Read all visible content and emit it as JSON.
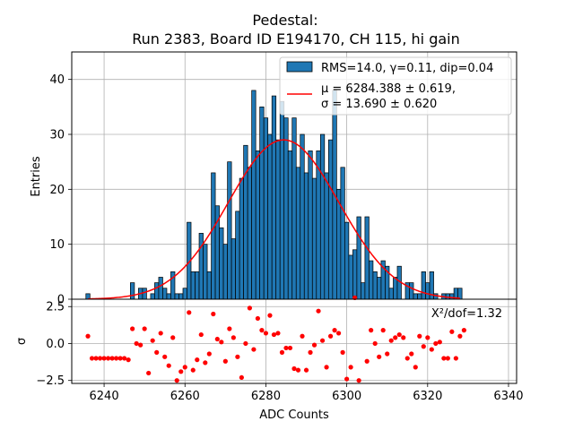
{
  "chart_data": [
    {
      "type": "bar",
      "title_line1": "Pedestal:",
      "title_line2": "Run 2383, Board ID E194170, CH 115, hi gain",
      "ylabel": "Entries",
      "xlim": [
        6232,
        6342
      ],
      "ylim": [
        0,
        45
      ],
      "yticks": [
        0,
        10,
        20,
        30,
        40
      ],
      "grid": true,
      "legend_position": "top-right",
      "legend": {
        "hist_label": "RMS=14.0, γ=0.11, dip=0.04",
        "fit_label_mu": "μ = 6284.388 ± 0.619,",
        "fit_label_sigma": "σ = 13.690 ± 0.620"
      },
      "bin_width": 1,
      "bins_x": [
        6236,
        6247,
        6249,
        6250,
        6252,
        6253,
        6254,
        6255,
        6256,
        6257,
        6258,
        6259,
        6260,
        6261,
        6262,
        6263,
        6264,
        6265,
        6266,
        6267,
        6268,
        6269,
        6270,
        6271,
        6272,
        6273,
        6274,
        6275,
        6276,
        6277,
        6278,
        6279,
        6280,
        6281,
        6282,
        6283,
        6284,
        6285,
        6286,
        6287,
        6288,
        6289,
        6290,
        6291,
        6292,
        6293,
        6294,
        6295,
        6296,
        6297,
        6298,
        6299,
        6300,
        6301,
        6302,
        6303,
        6304,
        6305,
        6306,
        6307,
        6308,
        6309,
        6310,
        6311,
        6312,
        6313,
        6315,
        6316,
        6317,
        6318,
        6319,
        6320,
        6321,
        6322,
        6324,
        6325,
        6326,
        6327,
        6328
      ],
      "counts": [
        1,
        3,
        2,
        2,
        1,
        3,
        4,
        2,
        1,
        5,
        1,
        1,
        2,
        14,
        5,
        5,
        12,
        10,
        5,
        23,
        17,
        13,
        10,
        25,
        11,
        16,
        22,
        28,
        24,
        38,
        27,
        35,
        33,
        30,
        37,
        29,
        36,
        33,
        27,
        33,
        24,
        30,
        23,
        27,
        22,
        27,
        30,
        23,
        29,
        38,
        20,
        24,
        14,
        8,
        9,
        15,
        3,
        15,
        7,
        5,
        4,
        7,
        6,
        2,
        4,
        6,
        3,
        3,
        1,
        1,
        5,
        3,
        5,
        1,
        1,
        1,
        1,
        2,
        2
      ],
      "fit": {
        "type": "gaussian",
        "amplitude": 29,
        "mu": 6284.388,
        "sigma": 13.69,
        "x_range": [
          6236,
          6328
        ]
      }
    },
    {
      "type": "scatter",
      "xlabel": "ADC Counts",
      "ylabel": "σ",
      "xlim": [
        6232,
        6342
      ],
      "ylim": [
        -2.7,
        3.0
      ],
      "xticks": [
        6240,
        6260,
        6280,
        6300,
        6320,
        6340
      ],
      "yticks": [
        -2.5,
        0.0,
        2.5
      ],
      "ytick_labels": [
        "−2.5",
        "0.0",
        "2.5"
      ],
      "grid": true,
      "annotation": "X²/dof=1.32",
      "marker_color": "#ff0000",
      "points": [
        [
          6236,
          0.5
        ],
        [
          6237,
          -1.0
        ],
        [
          6238,
          -1.0
        ],
        [
          6239,
          -1.0
        ],
        [
          6240,
          -1.0
        ],
        [
          6241,
          -1.0
        ],
        [
          6242,
          -1.0
        ],
        [
          6243,
          -1.0
        ],
        [
          6244,
          -1.0
        ],
        [
          6245,
          -1.0
        ],
        [
          6246,
          -1.1
        ],
        [
          6247,
          1.0
        ],
        [
          6248,
          0.0
        ],
        [
          6249,
          -0.1
        ],
        [
          6250,
          1.0
        ],
        [
          6251,
          -2.0
        ],
        [
          6252,
          0.2
        ],
        [
          6253,
          -0.6
        ],
        [
          6254,
          0.7
        ],
        [
          6255,
          -0.9
        ],
        [
          6256,
          -1.5
        ],
        [
          6257,
          0.4
        ],
        [
          6258,
          -2.5
        ],
        [
          6259,
          -1.9
        ],
        [
          6260,
          -1.6
        ],
        [
          6261,
          2.1
        ],
        [
          6262,
          -1.8
        ],
        [
          6263,
          -1.1
        ],
        [
          6264,
          0.6
        ],
        [
          6265,
          -1.3
        ],
        [
          6266,
          -0.7
        ],
        [
          6267,
          2.0
        ],
        [
          6268,
          0.3
        ],
        [
          6269,
          0.1
        ],
        [
          6270,
          -1.2
        ],
        [
          6271,
          1.0
        ],
        [
          6272,
          0.4
        ],
        [
          6273,
          -0.9
        ],
        [
          6274,
          -2.3
        ],
        [
          6275,
          0.0
        ],
        [
          6276,
          2.4
        ],
        [
          6277,
          -0.4
        ],
        [
          6278,
          1.7
        ],
        [
          6279,
          0.9
        ],
        [
          6280,
          0.7
        ],
        [
          6281,
          1.9
        ],
        [
          6282,
          0.6
        ],
        [
          6283,
          0.7
        ],
        [
          6284,
          -0.6
        ],
        [
          6285,
          -0.3
        ],
        [
          6286,
          -0.3
        ],
        [
          6287,
          -1.7
        ],
        [
          6288,
          -1.8
        ],
        [
          6289,
          0.5
        ],
        [
          6290,
          -1.8
        ],
        [
          6291,
          -0.6
        ],
        [
          6292,
          -0.1
        ],
        [
          6293,
          2.2
        ],
        [
          6294,
          0.2
        ],
        [
          6295,
          -1.6
        ],
        [
          6296,
          0.5
        ],
        [
          6297,
          0.9
        ],
        [
          6298,
          0.7
        ],
        [
          6299,
          -0.6
        ],
        [
          6300,
          -2.4
        ],
        [
          6301,
          -1.6
        ],
        [
          6302,
          3.1
        ],
        [
          6303,
          -2.5
        ],
        [
          6305,
          -1.2
        ],
        [
          6306,
          0.9
        ],
        [
          6307,
          0.0
        ],
        [
          6308,
          -0.9
        ],
        [
          6309,
          0.9
        ],
        [
          6310,
          -0.7
        ],
        [
          6311,
          0.2
        ],
        [
          6312,
          0.4
        ],
        [
          6313,
          0.6
        ],
        [
          6314,
          0.4
        ],
        [
          6315,
          -1.0
        ],
        [
          6316,
          -0.7
        ],
        [
          6317,
          -1.6
        ],
        [
          6318,
          0.5
        ],
        [
          6319,
          -0.2
        ],
        [
          6320,
          0.4
        ],
        [
          6321,
          -0.4
        ],
        [
          6322,
          0.0
        ],
        [
          6323,
          0.1
        ],
        [
          6324,
          -1.0
        ],
        [
          6325,
          -1.0
        ],
        [
          6326,
          0.8
        ],
        [
          6327,
          -1.0
        ],
        [
          6328,
          0.5
        ],
        [
          6329,
          0.9
        ]
      ]
    }
  ]
}
